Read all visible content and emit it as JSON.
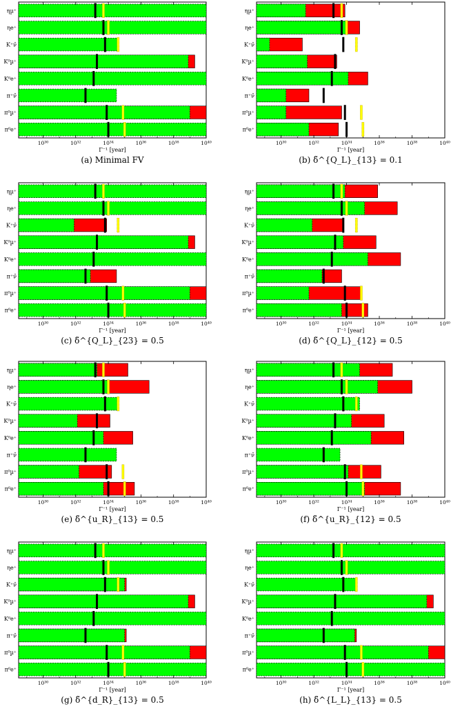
{
  "figure": {
    "xaxis_label": "Γ⁻¹ [year]",
    "x_ticks": [
      "10³⁰",
      "10³²",
      "10³⁴",
      "10³⁶",
      "10³⁸",
      "10⁴⁰"
    ],
    "x_tick_exponents": [
      30,
      32,
      34,
      36,
      38,
      40
    ],
    "x_scale": "log10",
    "x_range_log10": [
      28.5,
      40
    ],
    "channels": [
      "ηµ⁺",
      "ηe⁺",
      "K⁺ν̄",
      "K⁰µ⁺",
      "K⁰e⁺",
      "π⁺ν̄",
      "π⁰µ⁺",
      "π⁰e⁺"
    ],
    "colors": {
      "green": "#00ff00",
      "red": "#ff0000",
      "black": "#000000",
      "yellow": "#ffff00"
    }
  },
  "chart_data": [
    {
      "type": "bar",
      "caption": "(a)  Minimal FV",
      "categories": [
        "ηµ⁺",
        "ηe⁺",
        "K⁺ν̄",
        "K⁰µ⁺",
        "K⁰e⁺",
        "π⁺ν̄",
        "π⁰µ⁺",
        "π⁰e⁺"
      ],
      "series": [
        {
          "key": "green_log10",
          "values": [
            40.0,
            40.0,
            34.6,
            38.9,
            40.0,
            34.5,
            39.0,
            40.0
          ]
        },
        {
          "key": "red_log10",
          "values": [
            null,
            null,
            null,
            39.3,
            null,
            null,
            40.0,
            null
          ]
        },
        {
          "key": "black_marker_log10",
          "values": [
            33.2,
            33.7,
            33.8,
            33.3,
            33.1,
            32.6,
            33.9,
            34.0
          ]
        },
        {
          "key": "yellow_marker_log10",
          "values": [
            33.7,
            34.0,
            34.6,
            null,
            null,
            null,
            34.9,
            35.0
          ]
        }
      ]
    },
    {
      "type": "bar",
      "caption": "(b)  δ̃^{Q_L}_{13} = 0.1",
      "categories": [
        "ηµ⁺",
        "ηe⁺",
        "K⁺ν̄",
        "K⁰µ⁺",
        "K⁰e⁺",
        "π⁺ν̄",
        "π⁰µ⁺",
        "π⁰e⁺"
      ],
      "series": [
        {
          "key": "green_log10",
          "values": [
            31.5,
            34.0,
            29.3,
            31.6,
            34.1,
            30.3,
            30.3,
            31.7
          ]
        },
        {
          "key": "red_log10",
          "values": [
            33.9,
            34.8,
            31.3,
            33.4,
            35.3,
            31.7,
            33.7,
            33.5
          ]
        },
        {
          "key": "black_marker_log10",
          "values": [
            33.2,
            33.7,
            33.8,
            33.3,
            33.1,
            32.6,
            33.9,
            34.0
          ]
        },
        {
          "key": "yellow_marker_log10",
          "values": [
            33.7,
            34.0,
            34.6,
            null,
            null,
            null,
            34.9,
            35.0
          ]
        }
      ]
    },
    {
      "type": "bar",
      "caption": "(c)  δ̃^{Q_L}_{23} = 0.5",
      "categories": [
        "ηµ⁺",
        "ηe⁺",
        "K⁺ν̄",
        "K⁰µ⁺",
        "K⁰e⁺",
        "π⁺ν̄",
        "π⁰µ⁺",
        "π⁰e⁺"
      ],
      "series": [
        {
          "key": "green_log10",
          "values": [
            40.0,
            40.0,
            31.9,
            38.9,
            40.0,
            32.9,
            39.0,
            40.0
          ]
        },
        {
          "key": "red_log10",
          "values": [
            null,
            null,
            33.9,
            39.3,
            null,
            34.5,
            40.0,
            null
          ]
        },
        {
          "key": "black_marker_log10",
          "values": [
            33.2,
            33.7,
            33.8,
            33.3,
            33.1,
            32.6,
            33.9,
            34.0
          ]
        },
        {
          "key": "yellow_marker_log10",
          "values": [
            33.7,
            34.0,
            34.6,
            null,
            null,
            null,
            34.9,
            35.0
          ]
        }
      ]
    },
    {
      "type": "bar",
      "caption": "(d)  δ̃^{Q_L}_{12} = 0.5",
      "categories": [
        "ηµ⁺",
        "ηe⁺",
        "K⁺ν̄",
        "K⁰µ⁺",
        "K⁰e⁺",
        "π⁺ν̄",
        "π⁰µ⁺",
        "π⁰e⁺"
      ],
      "series": [
        {
          "key": "green_log10",
          "values": [
            33.9,
            35.1,
            31.9,
            33.8,
            35.3,
            32.5,
            31.7,
            33.7
          ]
        },
        {
          "key": "red_log10",
          "values": [
            35.9,
            37.1,
            33.8,
            35.8,
            37.3,
            33.7,
            34.9,
            35.3
          ]
        },
        {
          "key": "black_marker_log10",
          "values": [
            33.2,
            33.7,
            33.8,
            33.3,
            33.1,
            32.6,
            33.9,
            34.0
          ]
        },
        {
          "key": "yellow_marker_log10",
          "values": [
            33.7,
            34.0,
            34.6,
            null,
            null,
            null,
            34.9,
            35.0
          ]
        }
      ]
    },
    {
      "type": "bar",
      "caption": "(e)  δ̃^{u_R}_{13} = 0.5",
      "categories": [
        "ηµ⁺",
        "ηe⁺",
        "K⁺ν̄",
        "K⁰µ⁺",
        "K⁰e⁺",
        "π⁺ν̄",
        "π⁰µ⁺",
        "π⁰e⁺"
      ],
      "series": [
        {
          "key": "green_log10",
          "values": [
            33.3,
            34.0,
            34.6,
            32.1,
            33.7,
            34.5,
            32.2,
            33.7
          ]
        },
        {
          "key": "red_log10",
          "values": [
            35.2,
            36.5,
            null,
            34.1,
            35.5,
            null,
            34.2,
            35.6
          ]
        },
        {
          "key": "black_marker_log10",
          "values": [
            33.2,
            33.7,
            33.8,
            33.3,
            33.1,
            32.6,
            33.9,
            34.0
          ]
        },
        {
          "key": "yellow_marker_log10",
          "values": [
            33.7,
            34.0,
            34.6,
            null,
            null,
            null,
            34.9,
            35.0
          ]
        }
      ]
    },
    {
      "type": "bar",
      "caption": "(f)  δ̃^{u_R}_{12} = 0.5",
      "categories": [
        "ηµ⁺",
        "ηe⁺",
        "K⁺ν̄",
        "K⁰µ⁺",
        "K⁰e⁺",
        "π⁺ν̄",
        "π⁰µ⁺",
        "π⁰e⁺"
      ],
      "series": [
        {
          "key": "green_log10",
          "values": [
            34.8,
            35.9,
            34.8,
            34.3,
            35.5,
            33.6,
            34.1,
            35.1
          ]
        },
        {
          "key": "red_log10",
          "values": [
            36.8,
            38.0,
            null,
            36.3,
            37.5,
            null,
            36.1,
            37.3
          ]
        },
        {
          "key": "black_marker_log10",
          "values": [
            33.2,
            33.7,
            33.8,
            33.3,
            33.1,
            32.6,
            33.9,
            34.0
          ]
        },
        {
          "key": "yellow_marker_log10",
          "values": [
            33.7,
            34.0,
            34.6,
            null,
            null,
            null,
            34.9,
            35.0
          ]
        }
      ]
    },
    {
      "type": "bar",
      "caption": "(g)  δ̃^{d_R}_{13} = 0.5",
      "categories": [
        "ηµ⁺",
        "ηe⁺",
        "K⁺ν̄",
        "K⁰µ⁺",
        "K⁰e⁺",
        "π⁺ν̄",
        "π⁰µ⁺",
        "π⁰e⁺"
      ],
      "series": [
        {
          "key": "green_log10",
          "values": [
            40.0,
            40.0,
            35.0,
            38.9,
            40.0,
            35.0,
            39.0,
            40.0
          ]
        },
        {
          "key": "red_log10",
          "values": [
            null,
            null,
            35.1,
            39.3,
            null,
            35.1,
            40.0,
            null
          ]
        },
        {
          "key": "black_marker_log10",
          "values": [
            33.2,
            33.7,
            33.8,
            33.3,
            33.1,
            32.6,
            33.9,
            34.0
          ]
        },
        {
          "key": "yellow_marker_log10",
          "values": [
            33.7,
            34.0,
            34.6,
            null,
            null,
            null,
            34.9,
            35.0
          ]
        }
      ]
    },
    {
      "type": "bar",
      "caption": "(h)  δ̃^{L_L}_{13} = 0.5",
      "categories": [
        "ηµ⁺",
        "ηe⁺",
        "K⁺ν̄",
        "K⁰µ⁺",
        "K⁰e⁺",
        "π⁺ν̄",
        "π⁰µ⁺",
        "π⁰e⁺"
      ],
      "series": [
        {
          "key": "green_log10",
          "values": [
            40.0,
            40.0,
            34.6,
            38.9,
            40.0,
            34.5,
            39.0,
            40.0
          ]
        },
        {
          "key": "red_log10",
          "values": [
            null,
            null,
            null,
            39.3,
            null,
            34.6,
            40.0,
            null
          ]
        },
        {
          "key": "black_marker_log10",
          "values": [
            33.2,
            33.7,
            33.8,
            33.3,
            33.1,
            32.6,
            33.9,
            34.0
          ]
        },
        {
          "key": "yellow_marker_log10",
          "values": [
            33.7,
            34.0,
            34.6,
            null,
            null,
            null,
            34.9,
            35.0
          ]
        }
      ]
    }
  ]
}
